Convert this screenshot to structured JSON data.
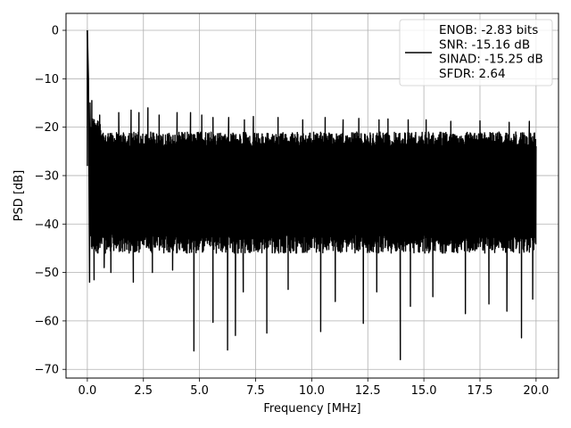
{
  "chart_data": {
    "type": "line",
    "xlabel": "Frequency [MHz]",
    "ylabel": "PSD [dB]",
    "xlim": [
      -0.95,
      21.0
    ],
    "ylim": [
      -71.8,
      3.5
    ],
    "xticks": [
      0.0,
      2.5,
      5.0,
      7.5,
      10.0,
      12.5,
      15.0,
      17.5,
      20.0
    ],
    "xtick_labels": [
      "0.0",
      "2.5",
      "5.0",
      "7.5",
      "10.0",
      "12.5",
      "15.0",
      "17.5",
      "20.0"
    ],
    "yticks": [
      0,
      -10,
      -20,
      -30,
      -40,
      -50,
      -60,
      -70
    ],
    "ytick_labels": [
      "0",
      "−10",
      "−20",
      "−30",
      "−40",
      "−50",
      "−60",
      "−70"
    ],
    "grid": true,
    "legend_position": "top-right",
    "series": [
      {
        "name": "ENOB: -2.83 bits\nSNR: -15.16 dB\nSINAD: -15.25 dB\nSFDR: 2.64",
        "color": "#000000",
        "peak": [
          [
            0.0,
            0.0
          ],
          [
            0.05,
            -10.0
          ],
          [
            0.12,
            -15.0
          ]
        ],
        "noise_band": {
          "x_range": [
            0.0,
            20.0
          ],
          "typical_upper": -21,
          "typical_lower": -46
        },
        "spikes_low": [
          [
            0.1,
            -52.0
          ],
          [
            0.3,
            -51.5
          ],
          [
            0.75,
            -49.0
          ],
          [
            1.05,
            -50.0
          ],
          [
            2.05,
            -52.0
          ],
          [
            2.9,
            -50.0
          ],
          [
            3.8,
            -49.5
          ],
          [
            4.75,
            -66.2
          ],
          [
            5.6,
            -60.3
          ],
          [
            6.25,
            -66.0
          ],
          [
            6.6,
            -63.0
          ],
          [
            6.95,
            -54.0
          ],
          [
            8.0,
            -62.5
          ],
          [
            8.95,
            -53.5
          ],
          [
            10.4,
            -62.2
          ],
          [
            11.05,
            -56.0
          ],
          [
            12.3,
            -60.5
          ],
          [
            12.9,
            -54.0
          ],
          [
            13.95,
            -68.0
          ],
          [
            14.4,
            -57.0
          ],
          [
            15.4,
            -55.0
          ],
          [
            16.85,
            -58.5
          ],
          [
            17.9,
            -56.5
          ],
          [
            18.7,
            -58.0
          ],
          [
            19.35,
            -63.5
          ],
          [
            19.85,
            -55.5
          ]
        ],
        "spikes_high": [
          [
            0.2,
            -14.5
          ],
          [
            0.55,
            -17.5
          ],
          [
            1.4,
            -17.0
          ],
          [
            1.95,
            -16.5
          ],
          [
            2.3,
            -17.0
          ],
          [
            2.7,
            -16.0
          ],
          [
            3.2,
            -17.5
          ],
          [
            4.0,
            -17.0
          ],
          [
            4.6,
            -17.0
          ],
          [
            5.1,
            -17.5
          ],
          [
            5.6,
            -18.0
          ],
          [
            6.3,
            -18.0
          ],
          [
            7.0,
            -18.5
          ],
          [
            7.4,
            -17.8
          ],
          [
            8.5,
            -18.0
          ],
          [
            9.6,
            -18.5
          ],
          [
            10.6,
            -18.0
          ],
          [
            11.4,
            -18.5
          ],
          [
            12.1,
            -18.2
          ],
          [
            13.0,
            -18.5
          ],
          [
            13.4,
            -18.3
          ],
          [
            14.3,
            -18.5
          ],
          [
            15.1,
            -18.5
          ],
          [
            16.2,
            -18.8
          ],
          [
            17.5,
            -18.7
          ],
          [
            18.8,
            -19.0
          ],
          [
            19.7,
            -18.8
          ]
        ]
      }
    ]
  }
}
